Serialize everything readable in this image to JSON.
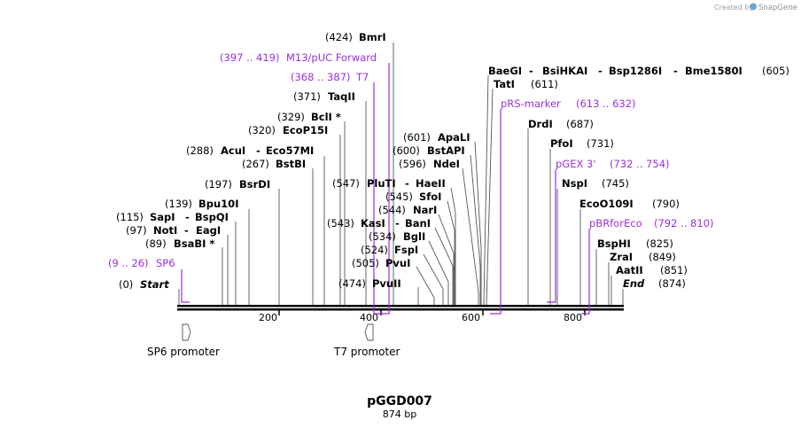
{
  "app": {
    "credit_text": "Created by",
    "brand": "SnapGene"
  },
  "plasmid": {
    "name": "pGGD007",
    "length_label": "874 bp",
    "length": 874
  },
  "colors": {
    "primer": "#9b30d9",
    "line": "#000000",
    "feature_outline": "#555555"
  },
  "axis": {
    "ticks": [
      "200",
      "400",
      "600",
      "800"
    ]
  },
  "annotations": [
    {
      "id": "start",
      "pos": "(0)",
      "name": "Start",
      "kind": "italic"
    },
    {
      "id": "sp6",
      "pos": "(9 .. 26)",
      "name": "SP6",
      "kind": "primer"
    },
    {
      "id": "bsabi",
      "pos": "(89)",
      "name": "BsaBI *",
      "kind": "site"
    },
    {
      "id": "noti",
      "pos": "(97)",
      "name": "NotI",
      "name2": "EagI",
      "kind": "site"
    },
    {
      "id": "sapi",
      "pos": "(115)",
      "name": "SapI",
      "name2": "BspQI",
      "kind": "site"
    },
    {
      "id": "bpu10i",
      "pos": "(139)",
      "name": "Bpu10I",
      "kind": "site"
    },
    {
      "id": "bsrdi",
      "pos": "(197)",
      "name": "BsrDI",
      "kind": "site"
    },
    {
      "id": "bstbi",
      "pos": "(267)",
      "name": "BstBI",
      "kind": "site"
    },
    {
      "id": "acui",
      "pos": "(288)",
      "name": "AcuI",
      "name2": "Eco57MI",
      "kind": "site"
    },
    {
      "id": "ecop15i",
      "pos": "(320)",
      "name": "EcoP15I",
      "kind": "site"
    },
    {
      "id": "bcli",
      "pos": "(329)",
      "name": "BclI *",
      "kind": "site"
    },
    {
      "id": "taqii",
      "pos": "(371)",
      "name": "TaqII",
      "kind": "site"
    },
    {
      "id": "t7",
      "pos": "(368 .. 387)",
      "name": "T7",
      "kind": "primer"
    },
    {
      "id": "m13",
      "pos": "(397 .. 419)",
      "name": "M13/pUC Forward",
      "kind": "primer"
    },
    {
      "id": "bmri",
      "pos": "(424)",
      "name": "BmrI",
      "kind": "site"
    },
    {
      "id": "pvuii",
      "pos": "(474)",
      "name": "PvuII",
      "kind": "site"
    },
    {
      "id": "pvui",
      "pos": "(505)",
      "name": "PvuI",
      "kind": "site"
    },
    {
      "id": "fspi",
      "pos": "(524)",
      "name": "FspI",
      "kind": "site"
    },
    {
      "id": "bgli",
      "pos": "(534)",
      "name": "BglI",
      "kind": "site"
    },
    {
      "id": "kasi",
      "pos": "(543)",
      "name": "KasI",
      "name2": "BanI",
      "kind": "site"
    },
    {
      "id": "nari",
      "pos": "(544)",
      "name": "NarI",
      "kind": "site"
    },
    {
      "id": "sfoi",
      "pos": "(545)",
      "name": "SfoI",
      "kind": "site"
    },
    {
      "id": "pluti",
      "pos": "(547)",
      "name": "PluTI",
      "name2": "HaeII",
      "kind": "site"
    },
    {
      "id": "ndei",
      "pos": "(596)",
      "name": "NdeI",
      "kind": "site"
    },
    {
      "id": "bstapi",
      "pos": "(600)",
      "name": "BstAPI",
      "kind": "site"
    },
    {
      "id": "apali",
      "pos": "(601)",
      "name": "ApaLI",
      "kind": "site"
    },
    {
      "id": "baegi",
      "name": "BaeGI",
      "name2": "BsiHKAI",
      "name3": "Bsp1286I",
      "name4": "Bme1580I",
      "pos": "(605)",
      "kind": "site"
    },
    {
      "id": "tati",
      "name": "TatI",
      "pos": "(611)",
      "kind": "site"
    },
    {
      "id": "prs",
      "name": "pRS-marker",
      "pos": "(613 .. 632)",
      "kind": "primer"
    },
    {
      "id": "drdi",
      "name": "DrdI",
      "pos": "(687)",
      "kind": "site"
    },
    {
      "id": "pfoi",
      "name": "PfoI",
      "pos": "(731)",
      "kind": "site"
    },
    {
      "id": "pgex",
      "name": "pGEX 3'",
      "pos": "(732 .. 754)",
      "kind": "primer"
    },
    {
      "id": "nspi",
      "name": "NspI",
      "pos": "(745)",
      "kind": "site"
    },
    {
      "id": "eco0109i",
      "name": "EcoO109I",
      "pos": "(790)",
      "kind": "site"
    },
    {
      "id": "pbr",
      "name": "pBRforEco",
      "pos": "(792 .. 810)",
      "kind": "primer"
    },
    {
      "id": "bsphi",
      "name": "BspHI",
      "pos": "(825)",
      "kind": "site"
    },
    {
      "id": "zrai",
      "name": "ZraI",
      "pos": "(849)",
      "kind": "site"
    },
    {
      "id": "aatii",
      "name": "AatII",
      "pos": "(851)",
      "kind": "site"
    },
    {
      "id": "end",
      "name": "End",
      "pos": "(874)",
      "kind": "italic"
    }
  ],
  "features": [
    {
      "id": "sp6-promoter",
      "label": "SP6 promoter",
      "start": 1,
      "end": 19
    },
    {
      "id": "t7-promoter",
      "label": "T7 promoter",
      "start": 365,
      "end": 383
    }
  ]
}
